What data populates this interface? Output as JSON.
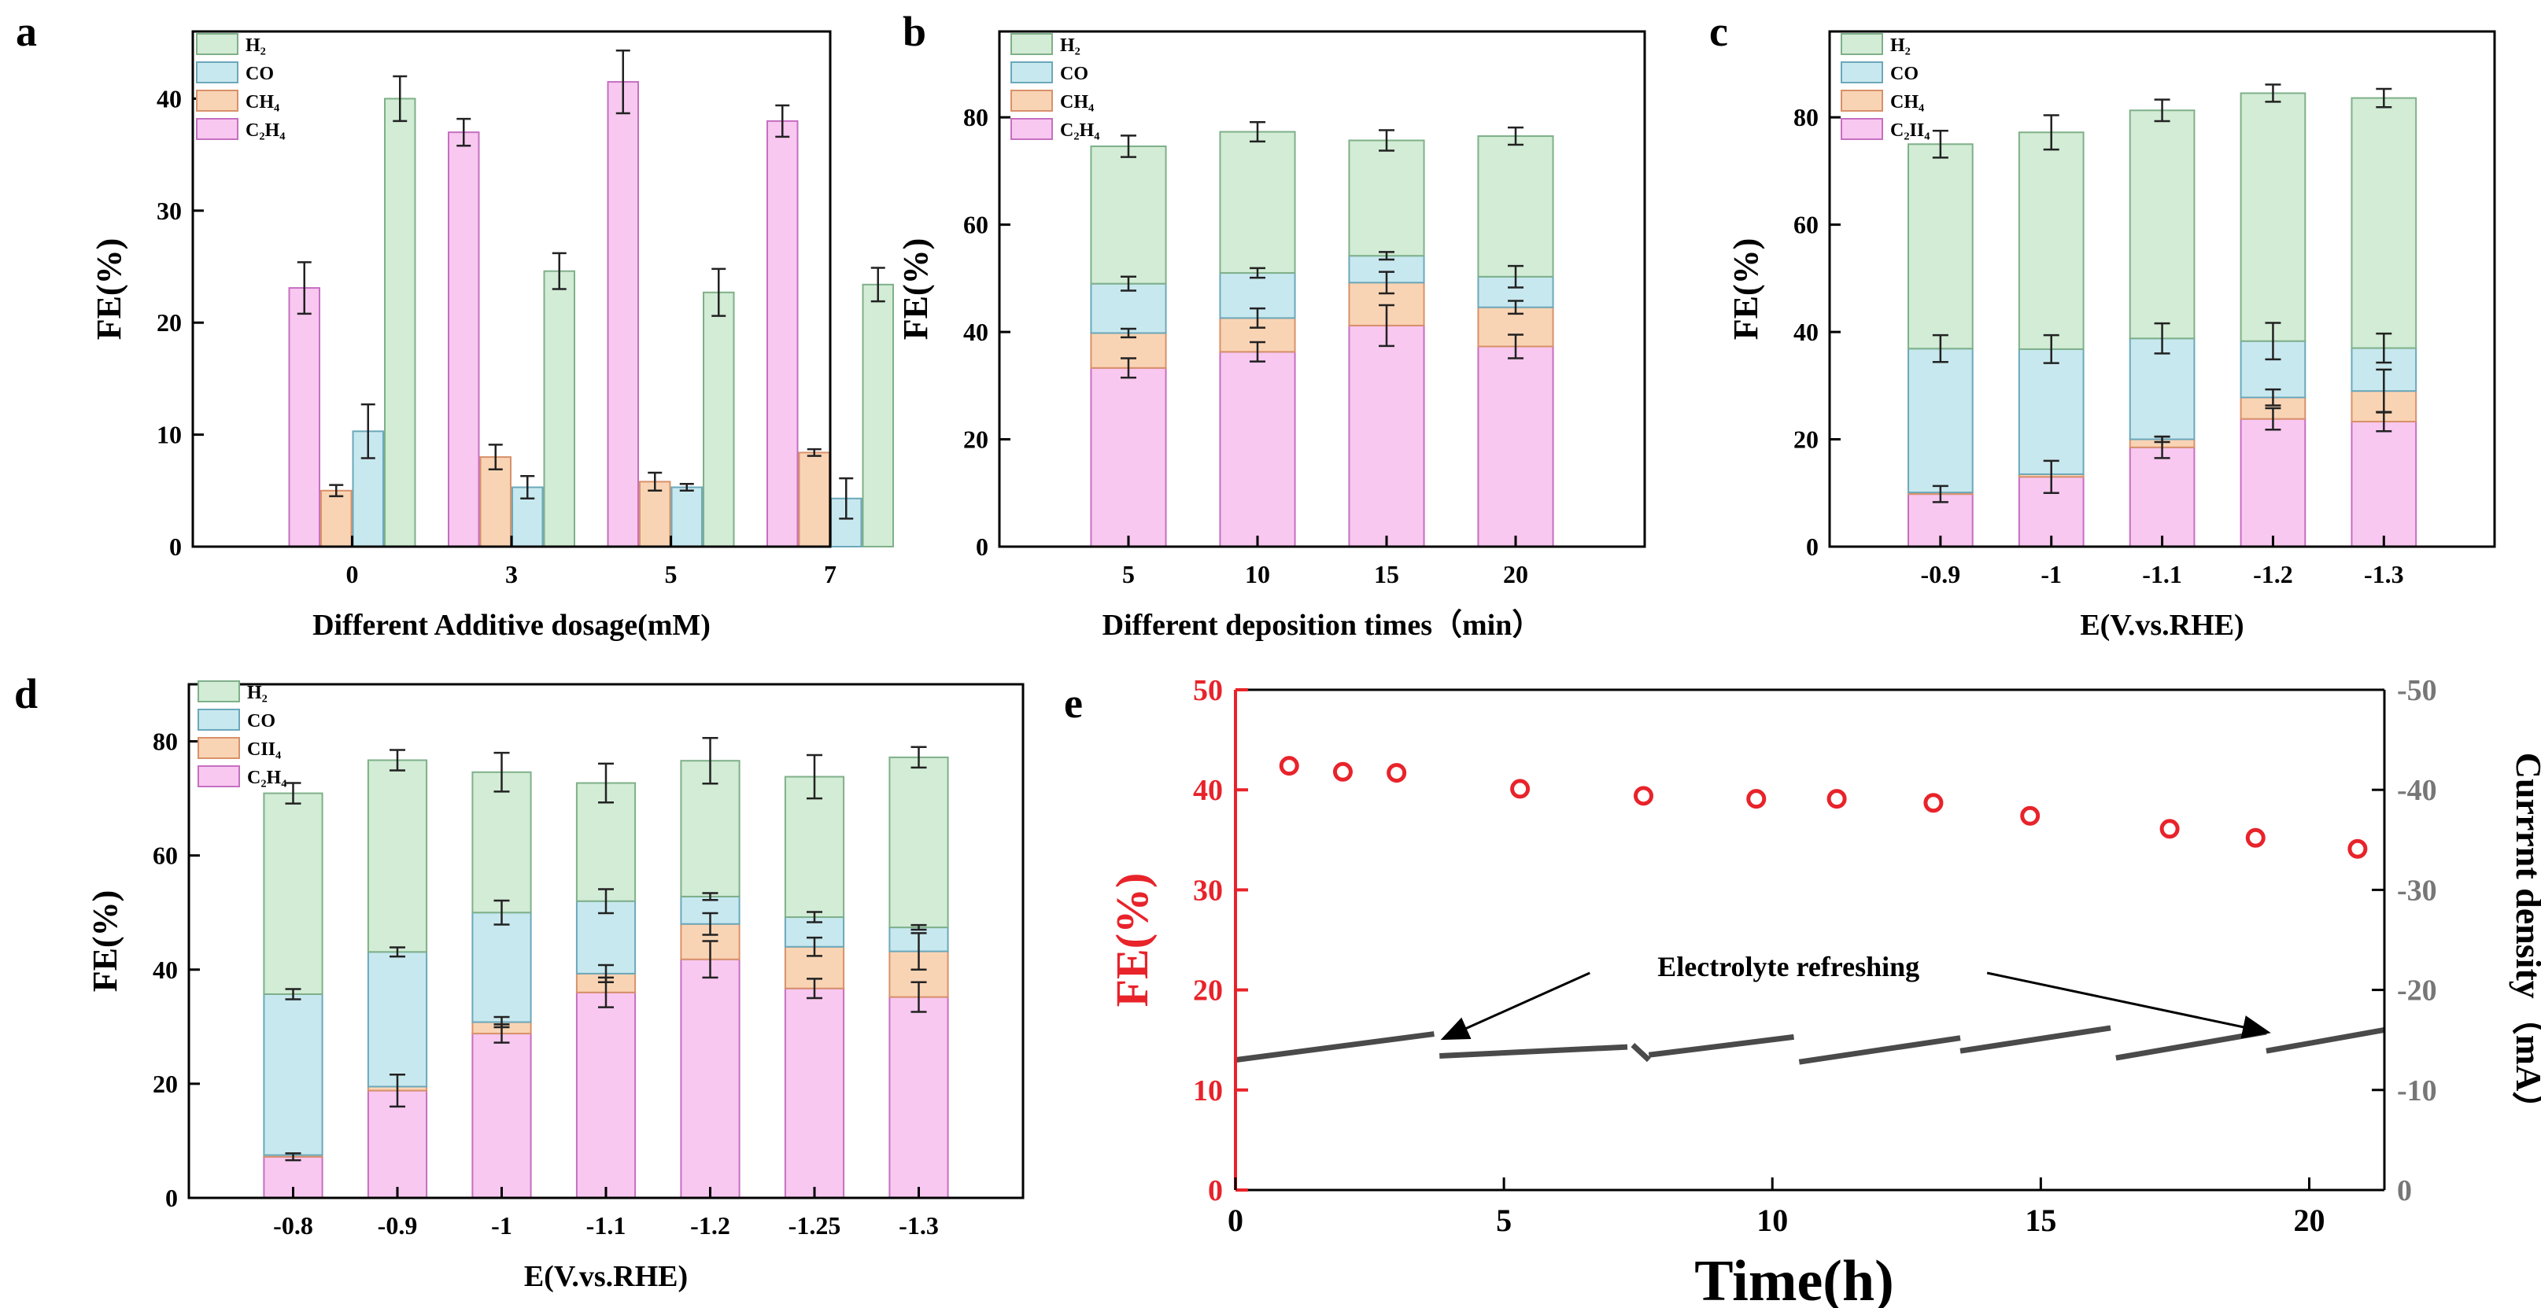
{
  "chart_data": [
    {
      "id": "a",
      "panel_label": "a",
      "type": "bar",
      "mode": "grouped",
      "xlabel": "Different Additive dosage(mM)",
      "ylabel": "FE(%)",
      "ylim": [
        0,
        46
      ],
      "yticks": [
        0,
        10,
        20,
        30,
        40
      ],
      "categories": [
        "0",
        "3",
        "5",
        "7"
      ],
      "legend_position": "top-left",
      "series": [
        {
          "name": "C2H4",
          "legend_label": "C₂H₄",
          "color": "#f8c8f0",
          "stroke": "#c66fc0",
          "values": [
            23.1,
            37.0,
            41.5,
            38.0
          ],
          "errors": [
            2.3,
            1.2,
            2.8,
            1.4
          ]
        },
        {
          "name": "CH4",
          "legend_label": "CH₄",
          "color": "#f9d4b4",
          "stroke": "#d8916a",
          "values": [
            5.0,
            8.0,
            5.8,
            8.4
          ],
          "errors": [
            0.5,
            1.1,
            0.8,
            0.3
          ]
        },
        {
          "name": "CO",
          "legend_label": "CO",
          "color": "#c8e8ef",
          "stroke": "#6ba8bb",
          "values": [
            10.3,
            5.3,
            5.3,
            4.3
          ],
          "errors": [
            2.4,
            1.0,
            0.3,
            1.8
          ]
        },
        {
          "name": "H2",
          "legend_label": "H₂",
          "color": "#d2ecd6",
          "stroke": "#7fb089",
          "values": [
            40.0,
            24.6,
            22.7,
            23.4
          ],
          "errors": [
            2.0,
            1.6,
            2.1,
            1.5
          ]
        }
      ]
    },
    {
      "id": "b",
      "panel_label": "b",
      "type": "bar",
      "mode": "stacked",
      "xlabel": "Different deposition times（min）",
      "ylabel": "FE(%)",
      "ylim": [
        0,
        96
      ],
      "yticks": [
        0,
        20,
        40,
        60,
        80
      ],
      "categories": [
        "5",
        "10",
        "15",
        "20"
      ],
      "legend_position": "top-left",
      "series": [
        {
          "name": "C2H4",
          "legend_label": "C₂H₄",
          "color": "#f8c8f0",
          "stroke": "#c66fc0",
          "values": [
            33.3,
            36.3,
            41.2,
            37.3
          ],
          "errors": [
            1.8,
            1.8,
            3.8,
            2.2
          ]
        },
        {
          "name": "CH4",
          "legend_label": "CH₄",
          "color": "#f9d4b4",
          "stroke": "#d8916a",
          "values": [
            6.5,
            6.3,
            8.0,
            7.3
          ],
          "errors": [
            0.8,
            1.8,
            2.0,
            1.2
          ]
        },
        {
          "name": "CO",
          "legend_label": "CO",
          "color": "#c8e8ef",
          "stroke": "#6ba8bb",
          "values": [
            9.2,
            8.4,
            5.0,
            5.7
          ],
          "errors": [
            1.3,
            0.9,
            0.7,
            2.0
          ]
        },
        {
          "name": "H2",
          "legend_label": "H₂",
          "color": "#d2ecd6",
          "stroke": "#7fb089",
          "values": [
            25.6,
            26.3,
            21.5,
            26.2
          ],
          "errors": [
            2.0,
            1.8,
            1.9,
            1.6
          ]
        }
      ]
    },
    {
      "id": "c",
      "panel_label": "c",
      "type": "bar",
      "mode": "stacked",
      "xlabel": "E(V.vs.RHE)",
      "ylabel": "FE(%)",
      "ylim": [
        0,
        96
      ],
      "yticks": [
        0,
        20,
        40,
        60,
        80
      ],
      "categories": [
        "-0.9",
        "-1",
        "-1.1",
        "-1.2",
        "-1.3"
      ],
      "legend_position": "top-left",
      "series": [
        {
          "name": "C2H4",
          "legend_label": "C₂II₄",
          "color": "#f8c8f0",
          "stroke": "#c66fc0",
          "values": [
            9.8,
            13.0,
            18.5,
            23.8,
            23.3
          ],
          "errors": [
            1.5,
            3.0,
            2.0,
            2.0,
            1.8
          ]
        },
        {
          "name": "CH4",
          "legend_label": "CH₄",
          "color": "#f9d4b4",
          "stroke": "#d8916a",
          "values": [
            0.3,
            0.5,
            1.5,
            4.0,
            5.7
          ],
          "errors": [
            0,
            0,
            0.5,
            1.5,
            4.0
          ]
        },
        {
          "name": "CO",
          "legend_label": "CO",
          "color": "#c8e8ef",
          "stroke": "#6ba8bb",
          "values": [
            26.8,
            23.3,
            18.8,
            10.5,
            8.0
          ],
          "errors": [
            2.5,
            2.6,
            2.8,
            3.4,
            2.7
          ]
        },
        {
          "name": "H2",
          "legend_label": "H₂",
          "color": "#d2ecd6",
          "stroke": "#7fb089",
          "values": [
            38.1,
            40.4,
            42.5,
            46.2,
            46.6
          ],
          "errors": [
            2.5,
            3.2,
            2.0,
            1.6,
            1.7
          ]
        }
      ]
    },
    {
      "id": "d",
      "panel_label": "d",
      "type": "bar",
      "mode": "stacked",
      "xlabel": "E(V.vs.RHE)",
      "ylabel": "FE(%)",
      "ylim": [
        0,
        90
      ],
      "yticks": [
        0,
        20,
        40,
        60,
        80
      ],
      "categories": [
        "-0.8",
        "-0.9",
        "-1",
        "-1.1",
        "-1.2",
        "-1.25",
        "-1.3"
      ],
      "legend_position": "top-left",
      "series": [
        {
          "name": "C2H4",
          "legend_label": "C₂H₄",
          "color": "#f8c8f0",
          "stroke": "#c66fc0",
          "values": [
            7.2,
            18.8,
            28.8,
            36.0,
            41.8,
            36.7,
            35.2
          ],
          "errors": [
            0.6,
            2.8,
            1.6,
            2.6,
            3.2,
            1.7,
            2.6
          ]
        },
        {
          "name": "CH4",
          "legend_label": "CII₄",
          "color": "#f9d4b4",
          "stroke": "#d8916a",
          "values": [
            0.3,
            0.7,
            2.0,
            3.3,
            6.2,
            7.3,
            8.0
          ],
          "errors": [
            0,
            0,
            0.9,
            1.5,
            1.9,
            1.6,
            3.2
          ]
        },
        {
          "name": "CO",
          "legend_label": "CO",
          "color": "#c8e8ef",
          "stroke": "#6ba8bb",
          "values": [
            28.2,
            23.6,
            19.2,
            12.7,
            4.8,
            5.2,
            4.2
          ],
          "errors": [
            0.9,
            0.8,
            2.1,
            2.1,
            0.6,
            0.9,
            0.4
          ]
        },
        {
          "name": "H2",
          "legend_label": "H₂",
          "color": "#d2ecd6",
          "stroke": "#7fb089",
          "values": [
            35.2,
            33.6,
            24.6,
            20.7,
            23.8,
            24.6,
            29.8
          ],
          "errors": [
            1.8,
            1.8,
            3.4,
            3.4,
            4.0,
            3.8,
            1.8
          ]
        }
      ]
    },
    {
      "id": "e",
      "panel_label": "e",
      "type": "scatter+line",
      "xlabel": "Time(h)",
      "ylabel_left": "FE(%)",
      "ylabel_right": "Currrnt density（mA）",
      "xlim": [
        0,
        21.4
      ],
      "xticks": [
        0,
        5,
        10,
        15,
        20
      ],
      "ylim_left": [
        0,
        50
      ],
      "yticks_left": [
        0,
        10,
        20,
        30,
        40,
        50
      ],
      "ylim_right": [
        0,
        -50
      ],
      "yticks_right": [
        0,
        -10,
        -20,
        -30,
        -40,
        -50
      ],
      "ytick_labels_right": [
        "0",
        "-10",
        "-20",
        "-30",
        "-40",
        "-50"
      ],
      "left_axis_color": "#e8232a",
      "marker_color": "#e8232a",
      "line_color": "#4a4a4a",
      "fe_points": {
        "x": [
          1.0,
          2.0,
          3.0,
          5.3,
          7.6,
          9.7,
          11.2,
          13.0,
          14.8,
          17.4,
          19.0,
          20.9
        ],
        "y": [
          42.4,
          41.8,
          41.7,
          40.1,
          39.4,
          39.1,
          39.1,
          38.7,
          37.4,
          36.1,
          35.2,
          34.1
        ]
      },
      "current_segments": [
        {
          "x": [
            0,
            3.7
          ],
          "y": [
            -13.0,
            -15.6
          ]
        },
        {
          "x": [
            3.8,
            7.3
          ],
          "y": [
            -13.4,
            -14.3
          ]
        },
        {
          "x": [
            7.4,
            7.7
          ],
          "y": [
            -14.5,
            -13.0
          ]
        },
        {
          "x": [
            7.7,
            10.4
          ],
          "y": [
            -13.5,
            -15.3
          ]
        },
        {
          "x": [
            10.5,
            13.5
          ],
          "y": [
            -12.8,
            -15.2
          ]
        },
        {
          "x": [
            13.5,
            16.3
          ],
          "y": [
            -13.9,
            -16.2
          ]
        },
        {
          "x": [
            16.4,
            19.2
          ],
          "y": [
            -13.2,
            -15.8
          ]
        },
        {
          "x": [
            19.2,
            21.4
          ],
          "y": [
            -13.9,
            -16.0
          ]
        }
      ],
      "annotation": {
        "text": "Electrolyte refreshing",
        "arrow_targets": [
          {
            "x": 3.9,
            "y": 15.2
          },
          {
            "x": 19.2,
            "y": 15.8
          }
        ]
      }
    }
  ]
}
